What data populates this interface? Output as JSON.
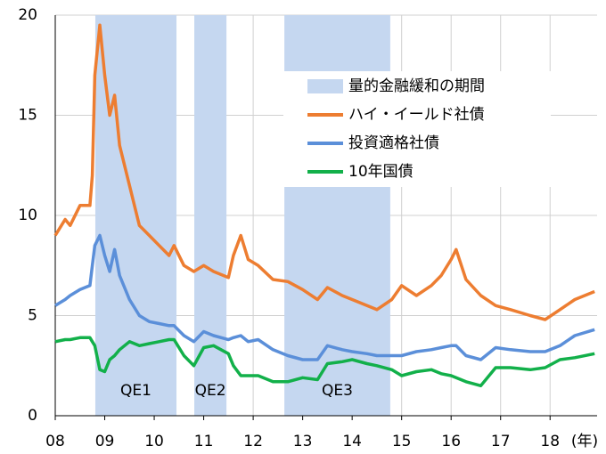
{
  "chart_data": {
    "type": "line",
    "x_unit_label": "(年)",
    "x": [
      2008.0,
      2008.2,
      2008.3,
      2008.5,
      2008.7,
      2008.75,
      2008.8,
      2008.9,
      2009.0,
      2009.1,
      2009.2,
      2009.3,
      2009.5,
      2009.7,
      2009.9,
      2010.1,
      2010.3,
      2010.4,
      2010.6,
      2010.8,
      2011.0,
      2011.2,
      2011.5,
      2011.6,
      2011.75,
      2011.9,
      2012.1,
      2012.4,
      2012.7,
      2013.0,
      2013.3,
      2013.5,
      2013.8,
      2014.0,
      2014.3,
      2014.5,
      2014.8,
      2015.0,
      2015.3,
      2015.6,
      2015.8,
      2016.0,
      2016.1,
      2016.3,
      2016.6,
      2016.9,
      2017.2,
      2017.6,
      2017.9,
      2018.2,
      2018.5,
      2018.9
    ],
    "series": [
      {
        "name": "ハイ・イールド社債",
        "color": "#ed7d31",
        "values": [
          9.0,
          9.8,
          9.5,
          10.5,
          10.5,
          12,
          17,
          19.5,
          17,
          15,
          16,
          13.5,
          11.5,
          9.5,
          9,
          8.5,
          8.0,
          8.5,
          7.5,
          7.2,
          7.5,
          7.2,
          6.9,
          8.0,
          9.0,
          7.8,
          7.5,
          6.8,
          6.7,
          6.3,
          5.8,
          6.4,
          6.0,
          5.8,
          5.5,
          5.3,
          5.8,
          6.5,
          6.0,
          6.5,
          7.0,
          7.8,
          8.3,
          6.8,
          6.0,
          5.5,
          5.3,
          5.0,
          4.8,
          5.3,
          5.8,
          6.2
        ]
      },
      {
        "name": "投資適格社債",
        "color": "#5b8fd9",
        "values": [
          5.5,
          5.8,
          6.0,
          6.3,
          6.5,
          7.5,
          8.5,
          9.0,
          8.0,
          7.2,
          8.3,
          7.0,
          5.8,
          5.0,
          4.7,
          4.6,
          4.5,
          4.5,
          4.0,
          3.7,
          4.2,
          4.0,
          3.8,
          3.9,
          4.0,
          3.7,
          3.8,
          3.3,
          3.0,
          2.8,
          2.8,
          3.5,
          3.3,
          3.2,
          3.1,
          3.0,
          3.0,
          3.0,
          3.2,
          3.3,
          3.4,
          3.5,
          3.5,
          3.0,
          2.8,
          3.4,
          3.3,
          3.2,
          3.2,
          3.5,
          4.0,
          4.3
        ]
      },
      {
        "name": "10年国債",
        "color": "#12b04a",
        "values": [
          3.7,
          3.8,
          3.8,
          3.9,
          3.9,
          3.7,
          3.5,
          2.3,
          2.2,
          2.8,
          3.0,
          3.3,
          3.7,
          3.5,
          3.6,
          3.7,
          3.8,
          3.8,
          3.0,
          2.5,
          3.4,
          3.5,
          3.1,
          2.5,
          2.0,
          2.0,
          2.0,
          1.7,
          1.7,
          1.9,
          1.8,
          2.6,
          2.7,
          2.8,
          2.6,
          2.5,
          2.3,
          2.0,
          2.2,
          2.3,
          2.1,
          2.0,
          1.9,
          1.7,
          1.5,
          2.4,
          2.4,
          2.3,
          2.4,
          2.8,
          2.9,
          3.1
        ]
      }
    ],
    "periods_name": "量的金融緩和の期間",
    "periods_color": "#c5d7f0",
    "periods": [
      {
        "start": 2008.81,
        "end": 2010.45,
        "label": "QE1"
      },
      {
        "start": 2010.81,
        "end": 2011.46,
        "label": "QE2"
      },
      {
        "start": 2012.63,
        "end": 2014.77,
        "label": "QE3"
      }
    ],
    "xlim": [
      2008,
      2018.95
    ],
    "xticks": [
      {
        "value": 2008,
        "label": "08"
      },
      {
        "value": 2009,
        "label": "09"
      },
      {
        "value": 2010,
        "label": "10"
      },
      {
        "value": 2011,
        "label": "11"
      },
      {
        "value": 2012,
        "label": "12"
      },
      {
        "value": 2013,
        "label": "13"
      },
      {
        "value": 2014,
        "label": "14"
      },
      {
        "value": 2015,
        "label": "15"
      },
      {
        "value": 2016,
        "label": "16"
      },
      {
        "value": 2017,
        "label": "17"
      },
      {
        "value": 2018,
        "label": "18"
      }
    ],
    "ylim": [
      0,
      20
    ],
    "yticks": [
      0,
      5,
      10,
      15,
      20
    ],
    "grid": true
  }
}
